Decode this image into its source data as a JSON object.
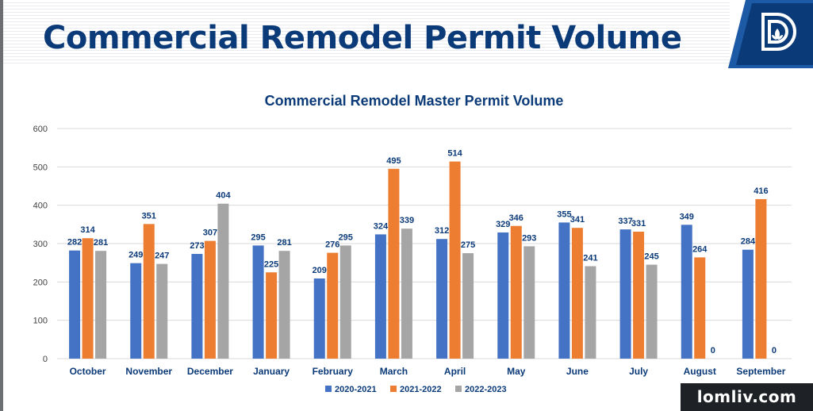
{
  "header": {
    "title": "Commercial Remodel Permit Volume"
  },
  "logo": {
    "icon": "dallas-d-logo-icon",
    "colors": {
      "navy": "#0b3a78",
      "blue": "#1d5aa6"
    }
  },
  "watermark": {
    "text": "lomliv.com"
  },
  "colors": {
    "2020-2021": "#4472c4",
    "2021-2022": "#ed7d31",
    "2022-2023": "#a5a5a5",
    "label": "#0b3a78"
  },
  "chart_data": {
    "type": "bar",
    "title": "Commercial Remodel Master Permit Volume",
    "categories": [
      "October",
      "November",
      "December",
      "January",
      "February",
      "March",
      "April",
      "May",
      "June",
      "July",
      "August",
      "September"
    ],
    "series": [
      {
        "name": "2020-2021",
        "values": [
          282,
          249,
          273,
          295,
          209,
          324,
          312,
          329,
          355,
          337,
          349,
          284
        ]
      },
      {
        "name": "2021-2022",
        "values": [
          314,
          351,
          307,
          225,
          276,
          495,
          514,
          346,
          341,
          331,
          264,
          416
        ]
      },
      {
        "name": "2022-2023",
        "values": [
          281,
          247,
          404,
          281,
          295,
          339,
          275,
          293,
          241,
          245,
          0,
          0
        ]
      }
    ],
    "ylim": [
      0,
      600
    ],
    "yticks": [
      0,
      100,
      200,
      300,
      400,
      500,
      600
    ],
    "grid": true,
    "legend": "bottom-center",
    "data_labels": true
  }
}
